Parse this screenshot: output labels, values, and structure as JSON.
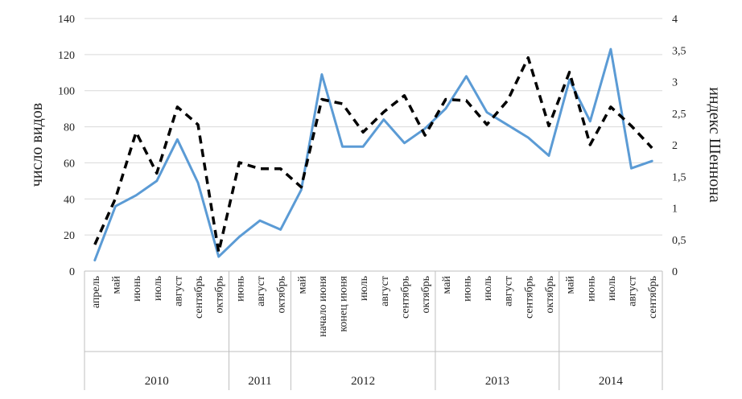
{
  "chart_data": {
    "type": "line",
    "ylabel": "число видов",
    "y2label": "индекс Шеннона",
    "ylim": [
      0,
      140
    ],
    "y_ticks": [
      "0",
      "20",
      "40",
      "60",
      "80",
      "100",
      "120",
      "140"
    ],
    "y2lim": [
      0,
      4
    ],
    "y2_ticks": [
      "0",
      "0,5",
      "1",
      "1,5",
      "2",
      "2,5",
      "3",
      "3,5",
      "4"
    ],
    "grid": true,
    "categories": [
      "апрель",
      "май",
      "июнь",
      "июль",
      "август",
      "сентябрь",
      "октябрь",
      "июнь",
      "август",
      "октябрь",
      "май",
      "начало июня",
      "конец июня",
      "июль",
      "август",
      "сентябрь",
      "октябрь",
      "май",
      "июнь",
      "июль",
      "август",
      "сентябрь",
      "октябрь",
      "май",
      "июнь",
      "июль",
      "август",
      "сентябрь"
    ],
    "groups": [
      {
        "label": "2010",
        "start": 0,
        "end": 6
      },
      {
        "label": "2011",
        "start": 7,
        "end": 9
      },
      {
        "label": "2012",
        "start": 10,
        "end": 16
      },
      {
        "label": "2013",
        "start": 17,
        "end": 22
      },
      {
        "label": "2014",
        "start": 23,
        "end": 27
      }
    ],
    "series": [
      {
        "axis": "left",
        "color": "#5b9bd5",
        "style": "solid",
        "values": [
          6,
          36,
          42,
          50,
          73,
          49,
          8,
          19,
          28,
          23,
          45,
          109,
          69,
          69,
          84,
          71,
          79,
          90,
          108,
          88,
          81,
          74,
          64,
          106,
          83,
          123,
          57,
          61
        ]
      },
      {
        "axis": "right",
        "color": "#000000",
        "style": "dashed",
        "values": [
          0.42,
          1.15,
          2.2,
          1.55,
          2.6,
          2.32,
          0.3,
          1.72,
          1.62,
          1.62,
          1.33,
          2.72,
          2.65,
          2.2,
          2.52,
          2.78,
          2.15,
          2.72,
          2.7,
          2.32,
          2.7,
          3.38,
          2.3,
          3.15,
          2.0,
          2.6,
          2.3,
          1.95
        ]
      }
    ]
  }
}
